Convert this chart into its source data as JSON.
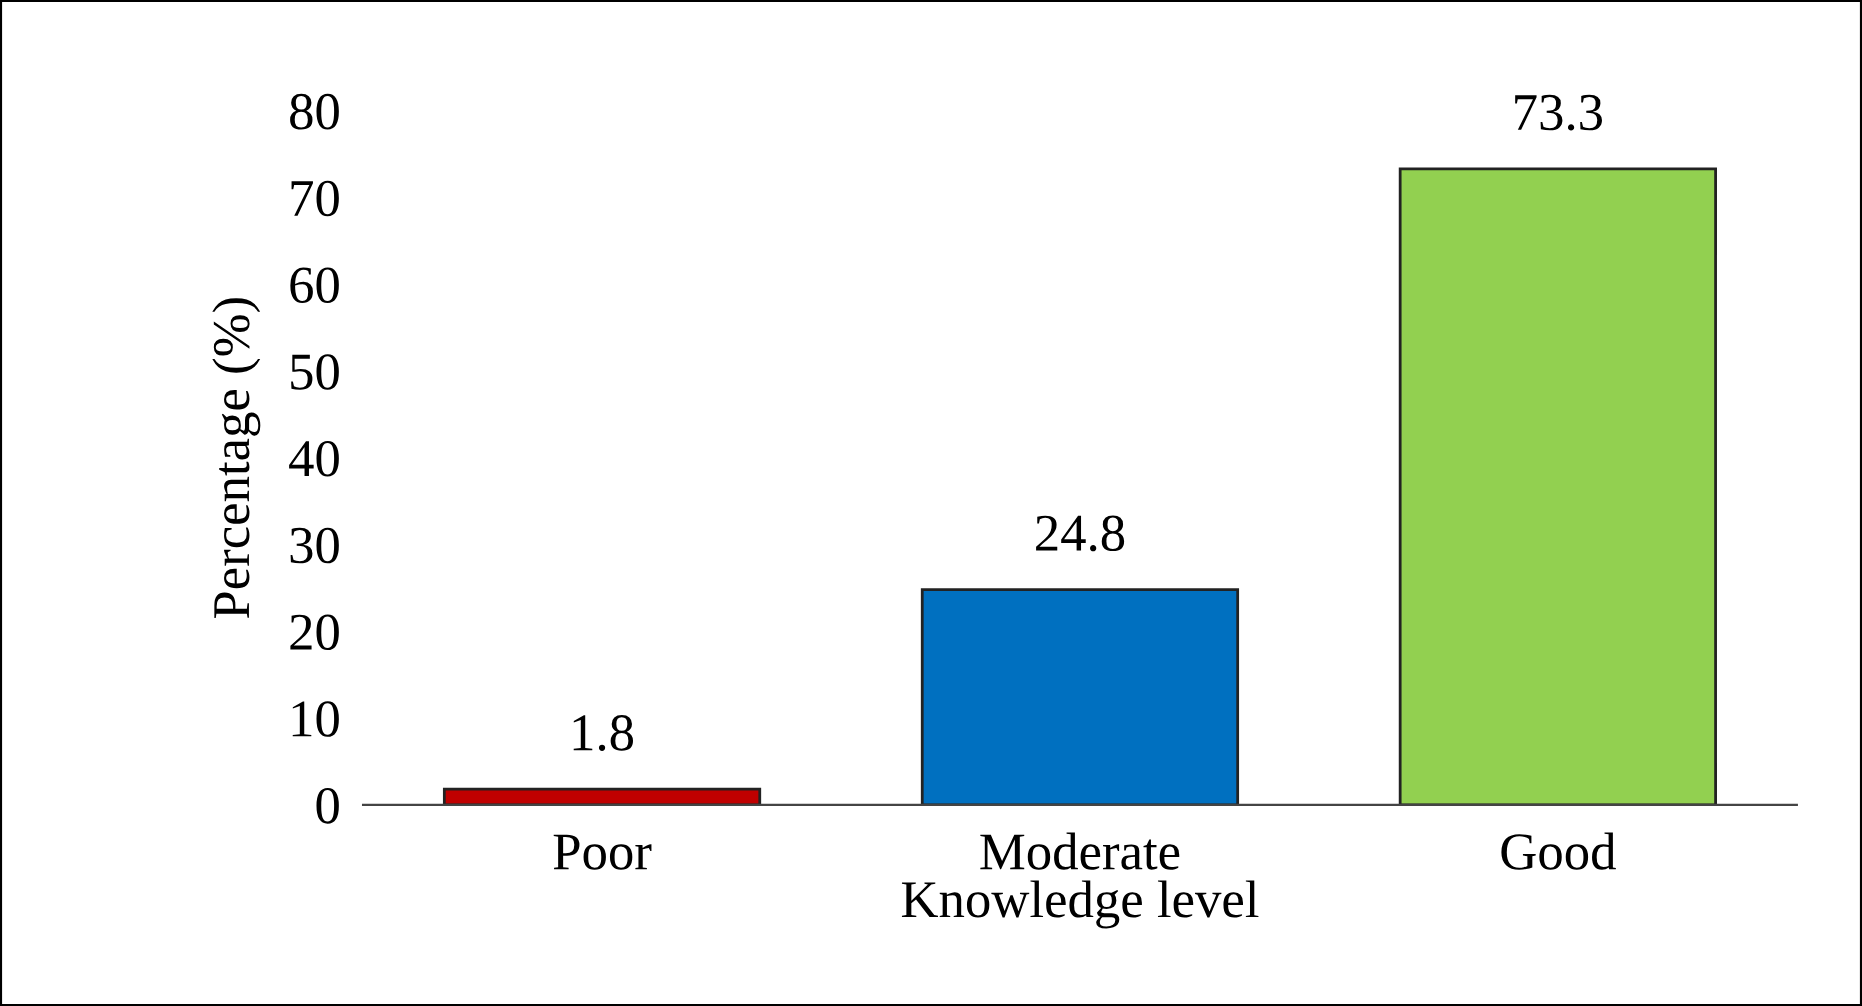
{
  "chart_data": {
    "type": "bar",
    "xlabel": "Knowledge level",
    "ylabel": "Percentage (%)",
    "categories": [
      "Poor",
      "Moderate",
      "Good"
    ],
    "values": [
      1.8,
      24.8,
      73.3
    ],
    "colors": [
      "#c00000",
      "#0070c0",
      "#92d050"
    ],
    "ylim": [
      0,
      80
    ],
    "yticks": [
      0,
      10,
      20,
      30,
      40,
      50,
      60,
      70,
      80
    ],
    "data_labels": true,
    "grid": false,
    "legend": false
  }
}
